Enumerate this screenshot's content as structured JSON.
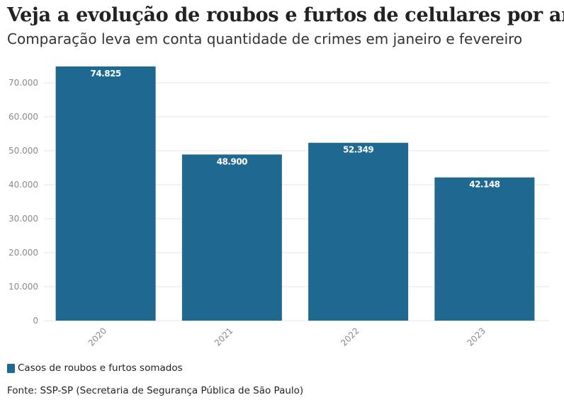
{
  "header": {
    "title": "Veja a evolução de roubos e furtos de celulares por ano",
    "subtitle": "Comparação leva em conta quantidade de crimes em janeiro e fevereiro"
  },
  "legend": {
    "label": "Casos de roubos e furtos somados"
  },
  "source": "Fonte: SSP-SP (Secretaria de Segurança Pública de São Paulo)",
  "colors": {
    "bar": "#1f6890",
    "grid": "#e6e6e6",
    "axis_text": "#8a8a8a",
    "label_text": "#ffffff"
  },
  "chart_data": {
    "type": "bar",
    "title": "Veja a evolução de roubos e furtos de celulares por ano",
    "subtitle": "Comparação leva em conta quantidade de crimes em janeiro e fevereiro",
    "xlabel": "",
    "ylabel": "",
    "categories": [
      "2020",
      "2021",
      "2022",
      "2023"
    ],
    "series": [
      {
        "name": "Casos de roubos e furtos somados",
        "values": [
          74825,
          48900,
          52349,
          42148
        ],
        "labels": [
          "74.825",
          "48.900",
          "52.349",
          "42.148"
        ]
      }
    ],
    "ylim": [
      0,
      75000
    ],
    "yticks": [
      0,
      10000,
      20000,
      30000,
      40000,
      50000,
      60000,
      70000
    ],
    "ytick_labels": [
      "0",
      "10.000",
      "20.000",
      "30.000",
      "40.000",
      "50.000",
      "60.000",
      "70.000"
    ],
    "grid": true,
    "legend_position": "bottom-left"
  }
}
